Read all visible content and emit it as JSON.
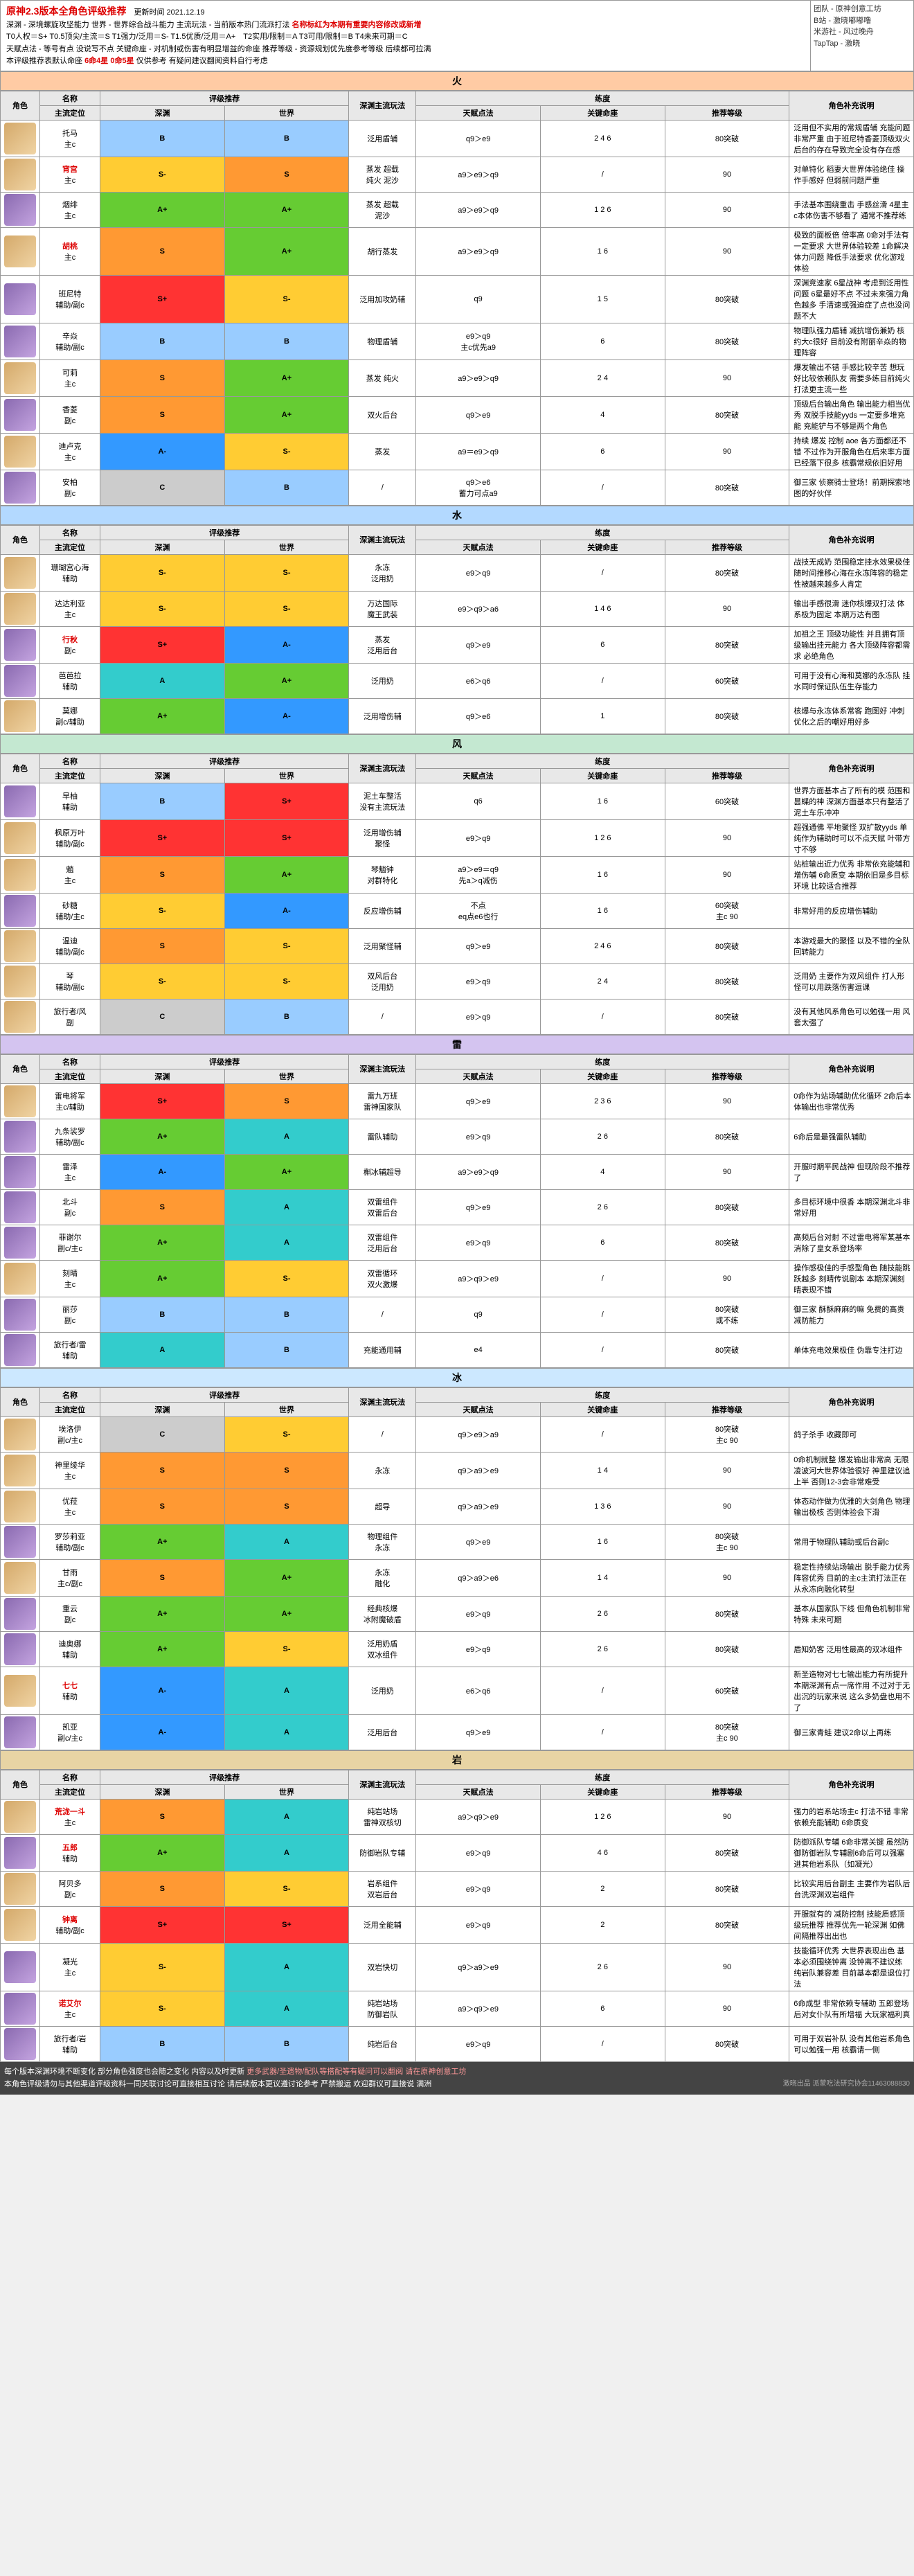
{
  "header": {
    "title": "原神2.3版本全角色评级推荐",
    "update": "更新时间 2021.12.19",
    "line2_a": "深渊 - 深境螺旋攻坚能力  世界 - 世界综合战斗能力  主流玩法 - 当前版本热门流派打法 ",
    "line2_b": "名称标红为本期有重要内容修改或新增",
    "line3": "T0人权＝S+  T0.5顶尖/主流＝S  T1强力/泛用＝S-  T1.5优质/泛用＝A+　T2实用/限制＝A  T3可用/限制＝B  T4未来可期＝C",
    "line4": "天赋点法 - 等号有点 没说写不点  关键命座 - 对机制或伤害有明显增益的命座  推荐等级 - 资源规划优先度参考等级 后续都可拉满",
    "line5_a": "本评级推荐表默认命座 ",
    "line5_b": "6命4星 0命5星",
    "line5_c": " 仅供参考 有疑问建议翻阅资料自行考虑",
    "side": [
      "团队 - 原神创意工坊",
      "B站 - 激晓嘟嘟噜",
      "米游社 - 风过晚舟",
      "TapTap - 激晓"
    ]
  },
  "sectionHeaders": {
    "avatar": "角色",
    "name_top": "名称",
    "name_bot": "主流定位",
    "tier_top": "评级推荐",
    "tier_a": "深渊",
    "tier_b": "世界",
    "play": "深渊主流玩法",
    "build_top": "练度",
    "talent": "天赋点法",
    "cons": "关键命座",
    "level": "推荐等级",
    "desc": "角色补充说明"
  },
  "elements": [
    {
      "name": "火",
      "cls": "火",
      "rows": [
        {
          "r": 5,
          "name": "托马",
          "role": "主c",
          "t1": "B",
          "t2": "B",
          "play": "泛用盾辅",
          "talent": "q9＞e9",
          "cons": "2 4 6",
          "level": "80突破",
          "desc": "泛用但不实用的常规盾辅 充能问题非常严重 由于班尼特香菱顶级双火后台的存在导致完全没有存在感"
        },
        {
          "r": 5,
          "name": "宵宫",
          "role": "主c",
          "t1": "S-",
          "t2": "S",
          "play": "蒸发 超载\n纯火 泥沙",
          "talent": "a9＞e9＞q9",
          "cons": "/",
          "level": "90",
          "desc": "对单特化 稻妻大世界体验绝佳 操作手感好 但弱前问题严重",
          "red": true
        },
        {
          "r": 4,
          "name": "烟绯",
          "role": "主c",
          "t1": "A+",
          "t2": "A+",
          "play": "蒸发 超载\n泥沙",
          "talent": "a9＞e9＞q9",
          "cons": "1 2 6",
          "level": "90",
          "desc": "手法基本围绕重击 手感丝滑 4星主c本体伤害不够看了 通常不推荐练"
        },
        {
          "r": 5,
          "name": "胡桃",
          "role": "主c",
          "t1": "S",
          "t2": "A+",
          "play": "胡行蒸发",
          "talent": "a9＞e9＞q9",
          "cons": "1 6",
          "level": "90",
          "desc": "极致的面板倍 倍率高 0命对手法有一定要求 大世界体验较差 1命解决体力问题 降低手法要求 优化游戏体验",
          "red": true
        },
        {
          "r": 4,
          "name": "班尼特",
          "role": "辅助/副c",
          "t1": "S+",
          "t2": "S-",
          "play": "泛用加攻奶辅",
          "talent": "q9",
          "cons": "1 5",
          "level": "80突破",
          "desc": "深渊竞速家 6星战神 考虑到泛用性问题 6星最好不点 不过未来强力角色越多 手清速或强迫症了点也没问题不大"
        },
        {
          "r": 4,
          "name": "辛焱",
          "role": "辅助/副c",
          "t1": "B",
          "t2": "B",
          "play": "物理盾辅",
          "talent": "e9＞q9\n主c优先a9",
          "cons": "6",
          "level": "80突破",
          "desc": "物理队强力盾辅 减抗增伤兼奶 核约大c很好 目前没有附丽辛焱的物理阵容"
        },
        {
          "r": 5,
          "name": "可莉",
          "role": "主c",
          "t1": "S",
          "t2": "A+",
          "play": "蒸发 纯火",
          "talent": "a9＞e9＞q9",
          "cons": "2 4",
          "level": "90",
          "desc": "爆发输出不错 手感比较辛苦 想玩好比较依赖队友 需要多练目前纯火打法更主流一些"
        },
        {
          "r": 4,
          "name": "香菱",
          "role": "副c",
          "t1": "S",
          "t2": "A+",
          "play": "双火后台",
          "talent": "q9＞e9",
          "cons": "4",
          "level": "80突破",
          "desc": "顶级后台输出角色 输出能力相当优秀 双脱手技能yyds 一定要多堆充能 充能铲与不够是两个角色"
        },
        {
          "r": 5,
          "name": "迪卢克",
          "role": "主c",
          "t1": "A-",
          "t2": "S-",
          "play": "蒸发",
          "talent": "a9＝e9＞q9",
          "cons": "6",
          "level": "90",
          "desc": "持续 爆发 控制 aoe 各方面都还不错 不过作为开服角色在后来率方面已经落下很多 核霸常规依旧好用"
        },
        {
          "r": 4,
          "name": "安柏",
          "role": "副c",
          "t1": "C",
          "t2": "B",
          "play": "/",
          "talent": "q9＞e6\n蓄力可点a9",
          "cons": "/",
          "level": "80突破",
          "desc": "御三家 侦察骑士登场！前期探索地图的好伙伴"
        }
      ]
    },
    {
      "name": "水",
      "cls": "水",
      "rows": [
        {
          "r": 5,
          "name": "珊瑚宫心海",
          "role": "辅助",
          "t1": "S-",
          "t2": "S-",
          "play": "永冻\n泛用奶",
          "talent": "e9＞q9",
          "cons": "/",
          "level": "80突破",
          "desc": "战技无成奶 范围稳定挂水效果极佳 随时间推移心海在永冻阵容的稳定性被越来越多人肯定"
        },
        {
          "r": 5,
          "name": "达达利亚",
          "role": "主c",
          "t1": "S-",
          "t2": "S-",
          "play": "万达国际\n魔王武装",
          "talent": "e9＞q9＞a6",
          "cons": "1 4 6",
          "level": "90",
          "desc": "输出手感很滑 迷你核爆双打法 体系极为固定 本期万达有图"
        },
        {
          "r": 4,
          "name": "行秋",
          "role": "副c",
          "t1": "S+",
          "t2": "A-",
          "play": "蒸发\n泛用后台",
          "talent": "q9＞e9",
          "cons": "6",
          "level": "80突破",
          "desc": "加祖之王 顶级功能性 并且拥有顶级输出挂元能力 各大顶级阵容都需求 必绝角色",
          "red": true
        },
        {
          "r": 4,
          "name": "芭芭拉",
          "role": "辅助",
          "t1": "A",
          "t2": "A+",
          "play": "泛用奶",
          "talent": "e6＞q6",
          "cons": "/",
          "level": "60突破",
          "desc": "可用于没有心海和莫娜的永冻队 挂水同时保证队伍生存能力"
        },
        {
          "r": 5,
          "name": "莫娜",
          "role": "副c/辅助",
          "t1": "A+",
          "t2": "A-",
          "play": "泛用增伤辅",
          "talent": "q9＞e6",
          "cons": "1",
          "level": "80突破",
          "desc": "核爆与永冻体系常客 跑图好 冲刺优化之后的嘲好用好多"
        }
      ]
    },
    {
      "name": "风",
      "cls": "风",
      "rows": [
        {
          "r": 4,
          "name": "早柚",
          "role": "辅助",
          "t1": "B",
          "t2": "S+",
          "play": "泥土车整活\n没有主流玩法",
          "talent": "q6",
          "cons": "1 6",
          "level": "60突破",
          "desc": "世界方面基本占了所有的模 范围和昙蝶的神 深渊方面基本只有整活了 泥土车乐冲冲"
        },
        {
          "r": 5,
          "name": "枫原万叶",
          "role": "辅助/副c",
          "t1": "S+",
          "t2": "S+",
          "play": "泛用增伤辅\n聚怪",
          "talent": "e9＞q9",
          "cons": "1 2 6",
          "level": "90",
          "desc": "超强通佛 平地聚怪 双扩散yyds 单纯作为辅助时可以不点天赋 叶带方寸不够"
        },
        {
          "r": 5,
          "name": "魈",
          "role": "主c",
          "t1": "S",
          "t2": "A+",
          "play": "琴魈钟\n对群特化",
          "talent": "a9＞e9＝q9\n先a＞q减伤",
          "cons": "1 6",
          "level": "90",
          "desc": "站桩输出近力优秀 非常依充能辅和增伤辅 6命质变 本期依旧是多目标环境 比较适合推荐"
        },
        {
          "r": 4,
          "name": "砂糖",
          "role": "辅助/主c",
          "t1": "S-",
          "t2": "A-",
          "play": "反应增伤辅",
          "talent": "不点\neq点e6也行",
          "cons": "1 6",
          "level": "60突破\n主c 90",
          "desc": "非常好用的反应增伤辅助"
        },
        {
          "r": 5,
          "name": "温迪",
          "role": "辅助/副c",
          "t1": "S",
          "t2": "S-",
          "play": "泛用聚怪辅",
          "talent": "q9＞e9",
          "cons": "2 4 6",
          "level": "80突破",
          "desc": "本游戏最大的聚怪 以及不错的全队回转能力"
        },
        {
          "r": 5,
          "name": "琴",
          "role": "辅助/副c",
          "t1": "S-",
          "t2": "S-",
          "play": "双风后台\n泛用奶",
          "talent": "e9＞q9",
          "cons": "2 4",
          "level": "80突破",
          "desc": "泛用奶 主要作为双风组件 打人形怪可以用跌落伤害逗课"
        },
        {
          "r": 5,
          "name": "旅行者/风",
          "role": "副",
          "t1": "C",
          "t2": "B",
          "play": "/",
          "talent": "e9＞q9",
          "cons": "/",
          "level": "80突破",
          "desc": "没有其他风系角色可以勉强一用 风套太强了"
        }
      ]
    },
    {
      "name": "雷",
      "cls": "雷",
      "rows": [
        {
          "r": 5,
          "name": "雷电将军",
          "role": "主c/辅助",
          "t1": "S+",
          "t2": "S",
          "play": "雷九万班\n雷神国家队",
          "talent": "q9＞e9",
          "cons": "2 3 6",
          "level": "90",
          "desc": "0命作为站场辅助优化循环 2命后本体输出也非常优秀"
        },
        {
          "r": 4,
          "name": "九条裟罗",
          "role": "辅助/副c",
          "t1": "A+",
          "t2": "A",
          "play": "雷队辅助",
          "talent": "e9＞q9",
          "cons": "2 6",
          "level": "80突破",
          "desc": "6命后是最强雷队辅助"
        },
        {
          "r": 4,
          "name": "雷泽",
          "role": "主c",
          "t1": "A-",
          "t2": "A+",
          "play": "槲冰辅超导",
          "talent": "a9＞e9＞q9",
          "cons": "4",
          "level": "90",
          "desc": "开服时期平民战神 但现阶段不推荐了"
        },
        {
          "r": 4,
          "name": "北斗",
          "role": "副c",
          "t1": "S",
          "t2": "A",
          "play": "双雷组件\n双雷后台",
          "talent": "q9＞e9",
          "cons": "2 6",
          "level": "80突破",
          "desc": "多目标环境中很香 本期深渊北斗非常好用"
        },
        {
          "r": 4,
          "name": "菲谢尔",
          "role": "副c/主c",
          "t1": "A+",
          "t2": "A",
          "play": "双雷组件\n泛用后台",
          "talent": "e9＞q9",
          "cons": "6",
          "level": "80突破",
          "desc": "高频后台对射 不过雷电将军某基本消除了皇女系登场率"
        },
        {
          "r": 5,
          "name": "刻晴",
          "role": "主c",
          "t1": "A+",
          "t2": "S-",
          "play": "双雷循环\n双火激爆",
          "talent": "a9＞q9＞e9",
          "cons": "/",
          "level": "90",
          "desc": "操作感极佳的手感型角色 随技能跳跃越多 刻晴传说剧本 本期深渊刻晴表现不错"
        },
        {
          "r": 4,
          "name": "丽莎",
          "role": "副c",
          "t1": "B",
          "t2": "B",
          "play": "/",
          "talent": "q9",
          "cons": "/",
          "level": "80突破\n或不练",
          "desc": "御三家 酥酥麻麻的嘛 免费的高贵减防能力"
        },
        {
          "r": 4,
          "name": "旅行者/雷",
          "role": "辅助",
          "t1": "A",
          "t2": "B",
          "play": "充能通用辅",
          "talent": "e4",
          "cons": "/",
          "level": "80突破",
          "desc": "单体充电效果极佳 伪靠专注打边"
        }
      ]
    },
    {
      "name": "冰",
      "cls": "冰",
      "rows": [
        {
          "r": 5,
          "name": "埃洛伊",
          "role": "副c/主c",
          "t1": "C",
          "t2": "S-",
          "play": "/",
          "talent": "q9＞e9＞a9",
          "cons": "/",
          "level": "80突破\n主c 90",
          "desc": "鸽子杀手 收藏即可"
        },
        {
          "r": 5,
          "name": "神里绫华",
          "role": "主c",
          "t1": "S",
          "t2": "S",
          "play": "永冻",
          "talent": "q9＞a9＞e9",
          "cons": "1 4",
          "level": "90",
          "desc": "0命机制就整 爆发输出非常高 无限凌波河大世界体验很好 神里建议追上半 否则12-3会非常难受"
        },
        {
          "r": 5,
          "name": "优菈",
          "role": "主c",
          "t1": "S",
          "t2": "S",
          "play": "超导",
          "talent": "q9＞a9＞e9",
          "cons": "1 3 6",
          "level": "90",
          "desc": "体态动作做为优雅的大剑角色 物理输出极核 否则体验会下滑"
        },
        {
          "r": 4,
          "name": "罗莎莉亚",
          "role": "辅助/副c",
          "t1": "A+",
          "t2": "A",
          "play": "物理组件\n永冻",
          "talent": "q9＞e9",
          "cons": "1 6",
          "level": "80突破\n主c 90",
          "desc": "常用于物理队辅助或后台副c"
        },
        {
          "r": 5,
          "name": "甘雨",
          "role": "主c/副c",
          "t1": "S",
          "t2": "A+",
          "play": "永冻\n融化",
          "talent": "q9＞a9＞e6",
          "cons": "1 4",
          "level": "90",
          "desc": "稳定性持续站场输出 脱手能力优秀 阵容优秀 目前的主c主流打法正在从永冻向融化转型"
        },
        {
          "r": 4,
          "name": "重云",
          "role": "副c",
          "t1": "A+",
          "t2": "A+",
          "play": "经典核爆\n冰附魔破盾",
          "talent": "e9＞q9",
          "cons": "2 6",
          "level": "80突破",
          "desc": "基本从国家队下线 但角色机制非常特殊 未来可期"
        },
        {
          "r": 4,
          "name": "迪奥娜",
          "role": "辅助",
          "t1": "A+",
          "t2": "S-",
          "play": "泛用奶盾\n双冰组件",
          "talent": "e9＞q9",
          "cons": "2 6",
          "level": "80突破",
          "desc": "盾知奶客 泛用性最高的双冰组件"
        },
        {
          "r": 5,
          "name": "七七",
          "role": "辅助",
          "t1": "A-",
          "t2": "A",
          "play": "泛用奶",
          "talent": "e6＞q6",
          "cons": "/",
          "level": "60突破",
          "desc": "新圣造物对七七输出能力有所提升 本期深渊有点一席作用 不过对于无出沉的玩家来说 这么多奶盘也用不了",
          "red": true
        },
        {
          "r": 4,
          "name": "凯亚",
          "role": "副c/主c",
          "t1": "A-",
          "t2": "A",
          "play": "泛用后台",
          "talent": "q9＞e9",
          "cons": "/",
          "level": "80突破\n主c 90",
          "desc": "御三家青蛙 建议2命以上再练"
        }
      ]
    },
    {
      "name": "岩",
      "cls": "岩",
      "rows": [
        {
          "r": 5,
          "name": "荒泷一斗",
          "role": "主c",
          "t1": "S",
          "t2": "A",
          "play": "纯岩站场\n雷神双核切",
          "talent": "a9＞q9＞e9",
          "cons": "1 2 6",
          "level": "90",
          "desc": "强力的岩系站场主c 打法不错 非常依赖充能辅助 6命质变",
          "red": true
        },
        {
          "r": 4,
          "name": "五郎",
          "role": "辅助",
          "t1": "A+",
          "t2": "A",
          "play": "防御岩队专辅",
          "talent": "e9＞q9",
          "cons": "4 6",
          "level": "80突破",
          "desc": "防御派队专辅 6命非常关键 虽然防御防御岩队专辅剧6命后可以强塞进其他岩系队（如凝光）",
          "red": true
        },
        {
          "r": 5,
          "name": "阿贝多",
          "role": "副c",
          "t1": "S",
          "t2": "S-",
          "play": "岩系组件\n双岩后台",
          "talent": "e9＞q9",
          "cons": "2",
          "level": "80突破",
          "desc": "比较实用后台副主 主要作为岩队后台洗深渊双岩组件"
        },
        {
          "r": 5,
          "name": "钟离",
          "role": "辅助/副c",
          "t1": "S+",
          "t2": "S+",
          "play": "泛用全能辅",
          "talent": "e9＞q9",
          "cons": "2",
          "level": "80突破",
          "desc": "开服就有的 减防控制 技能质感顶级玩推荐 推荐优先一轮深渊 如佛间隔推荐出出也",
          "red": true
        },
        {
          "r": 4,
          "name": "凝光",
          "role": "主c",
          "t1": "S-",
          "t2": "A",
          "play": "双岩快切",
          "talent": "q9＞a9＞e9",
          "cons": "2 6",
          "level": "90",
          "desc": "技能循环优秀 大世界表现出色 基本必须围绕钟离 没钟离不建议练 纯岩队兼容差 目前基本都是退位打法"
        },
        {
          "r": 4,
          "name": "诺艾尔",
          "role": "主c",
          "t1": "S-",
          "t2": "A",
          "play": "纯岩站场\n防御岩队",
          "talent": "a9＞q9＞e9",
          "cons": "6",
          "level": "90",
          "desc": "6命成型 非常依赖专辅助 五郎登场后对女仆队有所增福 大玩家福利真",
          "red": true
        },
        {
          "r": 4,
          "name": "旅行者/岩",
          "role": "辅助",
          "t1": "B",
          "t2": "B",
          "play": "纯岩后台",
          "talent": "e9＞q9",
          "cons": "/",
          "level": "80突破",
          "desc": "可用于双岩补队 没有其他岩系角色可以勉强一用 核霸请一侧"
        }
      ]
    }
  ],
  "footer": {
    "l1_a": "每个版本深渊环境不断变化 部分角色强度也会随之变化 内容以及时更新 ",
    "l1_b": "更多武器/圣遗物/配队等搭配等有疑问可以翻阅 请在原神创意工坊",
    "l2": "本角色评级请勿与其他渠道评级资料一同关联讨论可直接相互讨论 请后续版本更议遵讨论参考 严禁搬运 欢迎群议可直接说 满洲",
    "r": "激晓出品  派蒙吃法研究协会11463088830"
  }
}
